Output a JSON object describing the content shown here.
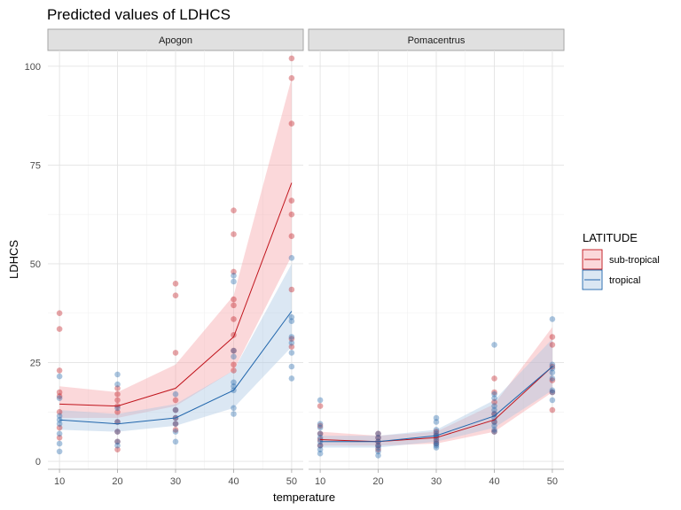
{
  "chart_data": {
    "type": "line",
    "title": "Predicted values of LDHCS",
    "xlabel": "temperature",
    "ylabel": "LDHCS",
    "x_ticks": [
      10,
      20,
      30,
      40,
      50
    ],
    "y_ticks": [
      0,
      25,
      50,
      75,
      100
    ],
    "xlim": [
      8,
      52
    ],
    "ylim": [
      -2,
      104
    ],
    "grid": true,
    "legend": {
      "title": "LATITUDE",
      "position": "right",
      "entries": [
        {
          "label": "sub-tropical",
          "color": "#c0141c",
          "fill": "#f5a3a6"
        },
        {
          "label": "tropical",
          "color": "#2166ac",
          "fill": "#a9c6e2"
        }
      ]
    },
    "panels": [
      {
        "name": "Apogon",
        "series": [
          {
            "name": "sub-tropical",
            "x": [
              10,
              20,
              30,
              40,
              50
            ],
            "y": [
              14.5,
              14,
              18.5,
              31.5,
              70.5
            ],
            "ci_low": [
              11,
              11,
              14,
              23,
              52
            ],
            "ci_high": [
              19,
              17.5,
              24.5,
              42,
              97
            ],
            "points": [
              [
                10,
                37.5
              ],
              [
                10,
                33.5
              ],
              [
                10,
                23
              ],
              [
                10,
                17.5
              ],
              [
                10,
                16.5
              ],
              [
                10,
                12.5
              ],
              [
                10,
                8.5
              ],
              [
                10,
                6
              ],
              [
                20,
                18.5
              ],
              [
                20,
                17
              ],
              [
                20,
                15.5
              ],
              [
                20,
                14
              ],
              [
                20,
                12.5
              ],
              [
                20,
                10
              ],
              [
                20,
                7.5
              ],
              [
                20,
                5
              ],
              [
                20,
                3
              ],
              [
                30,
                45
              ],
              [
                30,
                42
              ],
              [
                30,
                27.5
              ],
              [
                30,
                15.5
              ],
              [
                30,
                13
              ],
              [
                30,
                11
              ],
              [
                30,
                9.5
              ],
              [
                30,
                8
              ],
              [
                40,
                63.5
              ],
              [
                40,
                57.5
              ],
              [
                40,
                48
              ],
              [
                40,
                41
              ],
              [
                40,
                39.5
              ],
              [
                40,
                36
              ],
              [
                40,
                32
              ],
              [
                40,
                28
              ],
              [
                40,
                24.5
              ],
              [
                40,
                23
              ],
              [
                50,
                102
              ],
              [
                50,
                97
              ],
              [
                50,
                85.5
              ],
              [
                50,
                66
              ],
              [
                50,
                62.5
              ],
              [
                50,
                57
              ],
              [
                50,
                43.5
              ],
              [
                50,
                31
              ],
              [
                50,
                29
              ]
            ]
          },
          {
            "name": "tropical",
            "x": [
              10,
              20,
              30,
              40,
              50
            ],
            "y": [
              10.5,
              9.5,
              11,
              18,
              38
            ],
            "ci_low": [
              8,
              7.5,
              9,
              13.5,
              29
            ],
            "ci_high": [
              13,
              12,
              14.5,
              23,
              50
            ],
            "points": [
              [
                10,
                21.5
              ],
              [
                10,
                16
              ],
              [
                10,
                11.5
              ],
              [
                10,
                10.5
              ],
              [
                10,
                9.5
              ],
              [
                10,
                7
              ],
              [
                10,
                4.5
              ],
              [
                10,
                2.5
              ],
              [
                20,
                22
              ],
              [
                20,
                19.5
              ],
              [
                20,
                13.5
              ],
              [
                20,
                10
              ],
              [
                20,
                7.5
              ],
              [
                20,
                5
              ],
              [
                20,
                4
              ],
              [
                30,
                17
              ],
              [
                30,
                13
              ],
              [
                30,
                11
              ],
              [
                30,
                9.5
              ],
              [
                30,
                7.5
              ],
              [
                30,
                5
              ],
              [
                40,
                47
              ],
              [
                40,
                45.5
              ],
              [
                40,
                28
              ],
              [
                40,
                26.5
              ],
              [
                40,
                20
              ],
              [
                40,
                19
              ],
              [
                40,
                18
              ],
              [
                40,
                13.5
              ],
              [
                40,
                12
              ],
              [
                50,
                51.5
              ],
              [
                50,
                36.5
              ],
              [
                50,
                35.5
              ],
              [
                50,
                31.5
              ],
              [
                50,
                30
              ],
              [
                50,
                27.5
              ],
              [
                50,
                24
              ],
              [
                50,
                21
              ]
            ]
          }
        ]
      },
      {
        "name": "Pomacentrus",
        "series": [
          {
            "name": "sub-tropical",
            "x": [
              10,
              20,
              30,
              40,
              50
            ],
            "y": [
              5.5,
              5,
              6,
              10.5,
              24
            ],
            "ci_low": [
              4,
              4,
              4.5,
              7.5,
              17.5
            ],
            "ci_high": [
              7.5,
              6.5,
              7.5,
              14.5,
              34
            ],
            "points": [
              [
                10,
                14
              ],
              [
                10,
                9
              ],
              [
                10,
                7
              ],
              [
                10,
                5.5
              ],
              [
                10,
                4
              ],
              [
                20,
                7
              ],
              [
                20,
                6
              ],
              [
                20,
                5
              ],
              [
                20,
                4
              ],
              [
                20,
                3
              ],
              [
                30,
                7.5
              ],
              [
                30,
                6.5
              ],
              [
                30,
                5.5
              ],
              [
                30,
                4.5
              ],
              [
                40,
                21
              ],
              [
                40,
                17.5
              ],
              [
                40,
                15
              ],
              [
                40,
                12
              ],
              [
                40,
                10
              ],
              [
                40,
                7.5
              ],
              [
                50,
                31.5
              ],
              [
                50,
                29.5
              ],
              [
                50,
                24
              ],
              [
                50,
                20.5
              ],
              [
                50,
                17.5
              ],
              [
                50,
                13
              ]
            ]
          },
          {
            "name": "tropical",
            "x": [
              10,
              20,
              30,
              40,
              50
            ],
            "y": [
              5,
              5,
              6.5,
              11.5,
              24
            ],
            "ci_low": [
              3.5,
              3.5,
              5,
              8.5,
              18
            ],
            "ci_high": [
              6.5,
              6.5,
              8,
              15.5,
              31
            ],
            "points": [
              [
                10,
                15.5
              ],
              [
                10,
                9.5
              ],
              [
                10,
                8.5
              ],
              [
                10,
                7
              ],
              [
                10,
                6
              ],
              [
                10,
                5
              ],
              [
                10,
                4
              ],
              [
                10,
                3
              ],
              [
                10,
                2
              ],
              [
                20,
                7
              ],
              [
                20,
                6
              ],
              [
                20,
                5
              ],
              [
                20,
                4
              ],
              [
                20,
                3.5
              ],
              [
                20,
                2.5
              ],
              [
                20,
                1.5
              ],
              [
                30,
                11
              ],
              [
                30,
                10
              ],
              [
                30,
                8
              ],
              [
                30,
                7
              ],
              [
                30,
                6.5
              ],
              [
                30,
                6
              ],
              [
                30,
                5
              ],
              [
                30,
                4.5
              ],
              [
                30,
                4
              ],
              [
                30,
                3.5
              ],
              [
                40,
                29.5
              ],
              [
                40,
                17
              ],
              [
                40,
                16
              ],
              [
                40,
                14
              ],
              [
                40,
                13
              ],
              [
                40,
                12
              ],
              [
                40,
                11
              ],
              [
                40,
                10
              ],
              [
                40,
                9
              ],
              [
                40,
                8
              ],
              [
                40,
                7.5
              ],
              [
                50,
                36
              ],
              [
                50,
                24.5
              ],
              [
                50,
                23.5
              ],
              [
                50,
                22.5
              ],
              [
                50,
                21
              ],
              [
                50,
                18
              ],
              [
                50,
                17.5
              ],
              [
                50,
                15.5
              ]
            ]
          }
        ]
      }
    ]
  }
}
